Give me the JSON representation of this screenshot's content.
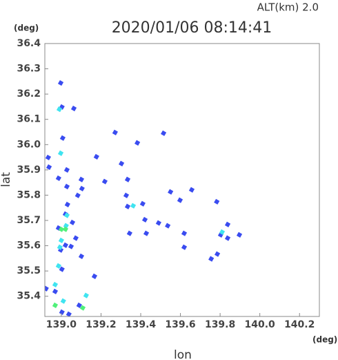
{
  "chart_data": {
    "type": "scatter",
    "title": "2020/01/06 08:14:41",
    "subtitle": "ALT(km)  2.0",
    "y_unit": "(deg)",
    "x_unit": "(deg)",
    "x_label": "lon",
    "y_label": "lat",
    "xlim": [
      138.917,
      140.3
    ],
    "ylim": [
      35.32,
      36.4
    ],
    "xticks": [
      {
        "value": 139,
        "label": "139.0"
      },
      139.2,
      139.4,
      139.6,
      139.8,
      {
        "value": 140,
        "label": "140.0"
      },
      140.2
    ],
    "yticks": [
      36.4,
      36.3,
      36.2,
      36.1,
      {
        "value": 36,
        "label": "36.0"
      },
      35.9,
      35.8,
      35.7,
      35.6,
      35.5,
      35.4
    ],
    "series": [
      {
        "color": "#3a4cf0",
        "x": [
          138.997,
          139.003,
          139.063,
          139.007,
          138.934,
          138.938,
          139.028,
          138.986,
          139.028,
          139.101,
          139.104,
          139.083,
          139.031,
          139.177,
          139.219,
          139.271,
          139.303,
          139.334,
          139.383,
          139.41,
          139.515,
          139.55,
          139.598,
          139.657,
          139.783,
          139.421,
          139.49,
          139.536,
          139.344,
          139.428,
          139.619,
          139.838,
          139.897,
          139.803,
          139.619,
          139.755,
          139.786,
          139.021,
          138.986,
          139.056,
          139.073,
          139.021,
          139.049,
          138.997,
          139.101,
          139.003,
          139.167,
          138.923,
          138.969,
          139.09,
          139.003,
          139.038,
          139.327,
          139.334,
          139.838
        ],
        "y": [
          36.244,
          36.149,
          36.143,
          36.026,
          35.949,
          35.911,
          35.9,
          35.867,
          35.834,
          35.862,
          35.826,
          35.799,
          35.763,
          35.952,
          35.854,
          36.048,
          35.925,
          35.862,
          36.007,
          35.766,
          36.045,
          35.813,
          35.78,
          35.821,
          35.774,
          35.703,
          35.69,
          35.679,
          35.649,
          35.649,
          35.649,
          35.684,
          35.643,
          35.643,
          35.594,
          35.548,
          35.567,
          35.725,
          35.67,
          35.692,
          35.63,
          35.602,
          35.597,
          35.583,
          35.558,
          35.507,
          35.479,
          35.43,
          35.419,
          35.364,
          35.337,
          35.329,
          35.799,
          35.755,
          35.63
        ]
      },
      {
        "color": "#40e4f0",
        "x": [
          138.99,
          138.997,
          139.028,
          139.024,
          139,
          138.993,
          138.986,
          139.125,
          139.01,
          138.969,
          139.362,
          139.81
        ],
        "y": [
          36.14,
          35.966,
          35.72,
          35.679,
          35.621,
          35.594,
          35.52,
          35.403,
          35.381,
          35.446,
          35.758,
          35.654
        ]
      },
      {
        "color": "#50f07a",
        "x": [
          139.021,
          139,
          139.108,
          138.969
        ],
        "y": [
          35.665,
          35.665,
          35.354,
          35.364
        ]
      }
    ]
  }
}
